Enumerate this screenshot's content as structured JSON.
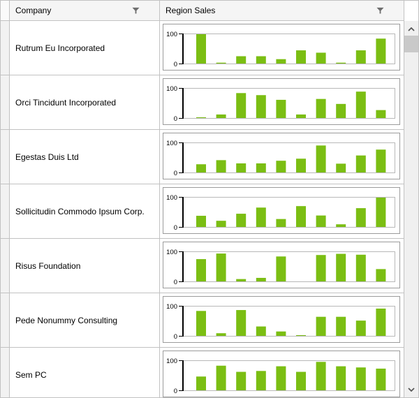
{
  "header": {
    "company_label": "Company",
    "region_sales_label": "Region Sales",
    "filter_icon": "funnel-icon"
  },
  "sparkline": {
    "type": "bar",
    "ymin": 0,
    "ymax": 100,
    "y_axis_labels": [
      "100",
      "0"
    ],
    "bar_color": "#7BBE13",
    "plot_border_color": "#b8b8b8",
    "axis_color": "#000000",
    "chart_frame_color": "#9b9b9b"
  },
  "rows": [
    {
      "company": "Rutrum Eu Incorporated",
      "values": [
        100,
        3,
        25,
        25,
        15,
        45,
        37,
        3,
        45,
        85
      ]
    },
    {
      "company": "Orci Tincidunt Incorporated",
      "values": [
        1,
        12,
        85,
        78,
        62,
        12,
        65,
        48,
        90,
        27
      ]
    },
    {
      "company": "Egestas Duis Ltd",
      "values": [
        28,
        42,
        31,
        31,
        40,
        47,
        92,
        30,
        58,
        78
      ]
    },
    {
      "company": "Sollicitudin Commodo Ipsum Corp.",
      "values": [
        38,
        21,
        45,
        66,
        27,
        71,
        39,
        9,
        64,
        100
      ]
    },
    {
      "company": "Risus Foundation",
      "values": [
        76,
        95,
        8,
        12,
        85,
        0,
        90,
        94,
        91,
        42
      ]
    },
    {
      "company": "Pede Nonummy Consulting",
      "values": [
        85,
        9,
        88,
        32,
        15,
        1,
        65,
        65,
        52,
        93
      ]
    },
    {
      "company": "Sem PC",
      "values": [
        47,
        84,
        63,
        66,
        82,
        63,
        97,
        82,
        78,
        74
      ]
    }
  ],
  "scrollbar": {
    "up_icon": "chevron-up",
    "down_icon": "chevron-down"
  },
  "colors": {
    "header_bg": "#f5f5f5",
    "gutter_bg": "#f2f2f2",
    "grid_border": "#c2c2c2",
    "icon_gray": "#6e6e6e",
    "scroll_track": "#f0f0f0",
    "scroll_thumb": "#c9c9c9"
  }
}
